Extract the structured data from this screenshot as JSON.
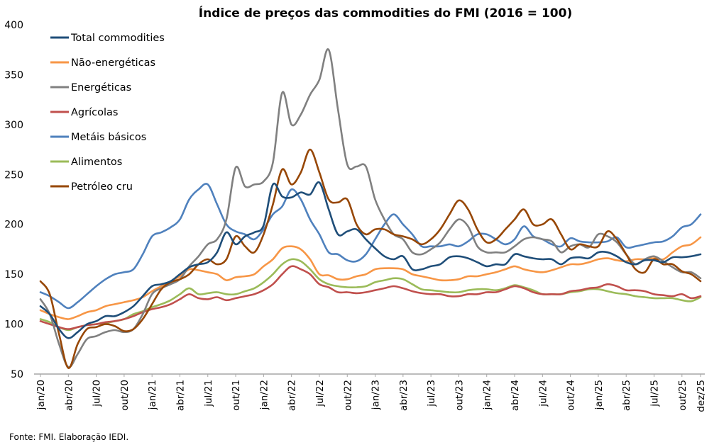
{
  "chart_data": {
    "type": "line",
    "title": "Índice de preços das commodities do FMI  (2016 = 100)",
    "xlabel": "",
    "ylabel": "",
    "ylim": [
      50,
      400
    ],
    "yticks": [
      50,
      100,
      150,
      200,
      250,
      300,
      350,
      400
    ],
    "grid": false,
    "legend_position": "top-left",
    "x_tick_labels": [
      "jan/20",
      "abr/20",
      "jul/20",
      "out/20",
      "jan/21",
      "abr/21",
      "jul/21",
      "out/21",
      "jan/22",
      "abr/22",
      "jul/22",
      "out/22",
      "jan/23",
      "abr/23",
      "jul/23",
      "out/23",
      "jan/24",
      "abr/24",
      "jul/24",
      "out/24",
      "jan/25",
      "abr/25",
      "jul/25",
      "out/25",
      "dez/25"
    ],
    "x": [
      "jan/20",
      "fev/20",
      "mar/20",
      "abr/20",
      "mai/20",
      "jun/20",
      "jul/20",
      "ago/20",
      "set/20",
      "out/20",
      "nov/20",
      "dez/20",
      "jan/21",
      "fev/21",
      "mar/21",
      "abr/21",
      "mai/21",
      "jun/21",
      "jul/21",
      "ago/21",
      "set/21",
      "out/21",
      "nov/21",
      "dez/21",
      "jan/22",
      "fev/22",
      "mar/22",
      "abr/22",
      "mai/22",
      "jun/22",
      "jul/22",
      "ago/22",
      "set/22",
      "out/22",
      "nov/22",
      "dez/22",
      "jan/23",
      "fev/23",
      "mar/23",
      "abr/23",
      "mai/23",
      "jun/23",
      "jul/23",
      "ago/23",
      "set/23",
      "out/23",
      "nov/23",
      "dez/23",
      "jan/24",
      "fev/24",
      "mar/24",
      "abr/24",
      "mai/24",
      "jun/24",
      "jul/24",
      "ago/24",
      "set/24",
      "out/24",
      "nov/24",
      "dez/24",
      "jan/25",
      "fev/25",
      "mar/25",
      "abr/25",
      "mai/25",
      "jun/25",
      "jul/25",
      "ago/25",
      "set/25",
      "out/25",
      "nov/25",
      "dez/25"
    ],
    "series": [
      {
        "name": "Total commodities",
        "color": "#1F4E79",
        "values": [
          118,
          110,
          95,
          86,
          92,
          100,
          103,
          108,
          108,
          112,
          118,
          128,
          138,
          140,
          143,
          150,
          157,
          160,
          162,
          172,
          192,
          180,
          188,
          192,
          199,
          240,
          228,
          227,
          232,
          230,
          242,
          215,
          190,
          193,
          195,
          185,
          176,
          168,
          165,
          168,
          155,
          155,
          158,
          160,
          167,
          168,
          166,
          162,
          158,
          160,
          160,
          170,
          168,
          166,
          165,
          165,
          160,
          166,
          167,
          166,
          172,
          172,
          168,
          162,
          160,
          164,
          164,
          162,
          167,
          167,
          168,
          170
        ]
      },
      {
        "name": "Não-energéticas",
        "color": "#F79646",
        "values": [
          114,
          110,
          107,
          105,
          108,
          112,
          114,
          118,
          120,
          122,
          124,
          127,
          133,
          138,
          143,
          148,
          155,
          154,
          152,
          150,
          144,
          147,
          148,
          150,
          158,
          165,
          176,
          178,
          175,
          165,
          150,
          149,
          145,
          145,
          148,
          150,
          155,
          156,
          156,
          155,
          150,
          148,
          146,
          144,
          144,
          145,
          148,
          148,
          150,
          152,
          155,
          158,
          155,
          153,
          152,
          154,
          157,
          160,
          160,
          162,
          165,
          166,
          164,
          163,
          165,
          165,
          166,
          165,
          172,
          178,
          180,
          187
        ]
      },
      {
        "name": "Energéticas",
        "color": "#808080",
        "values": [
          125,
          110,
          80,
          57,
          70,
          85,
          88,
          92,
          94,
          92,
          95,
          110,
          130,
          136,
          140,
          145,
          158,
          168,
          180,
          185,
          205,
          257,
          238,
          240,
          243,
          262,
          332,
          300,
          310,
          330,
          345,
          375,
          315,
          260,
          258,
          258,
          225,
          205,
          190,
          185,
          172,
          170,
          175,
          182,
          195,
          205,
          198,
          178,
          172,
          172,
          172,
          178,
          185,
          187,
          185,
          183,
          172,
          178,
          180,
          177,
          190,
          188,
          182,
          170,
          160,
          165,
          168,
          163,
          157,
          152,
          152,
          146
        ]
      },
      {
        "name": "Agrícolas",
        "color": "#C0504D",
        "values": [
          103,
          100,
          97,
          95,
          97,
          99,
          100,
          102,
          103,
          105,
          108,
          112,
          115,
          117,
          120,
          125,
          130,
          126,
          125,
          127,
          124,
          126,
          128,
          130,
          134,
          140,
          150,
          158,
          155,
          150,
          140,
          137,
          132,
          132,
          131,
          132,
          134,
          136,
          138,
          136,
          133,
          131,
          130,
          130,
          128,
          128,
          130,
          130,
          132,
          132,
          135,
          138,
          136,
          132,
          130,
          130,
          130,
          133,
          134,
          136,
          137,
          140,
          138,
          134,
          134,
          133,
          130,
          129,
          128,
          130,
          126,
          128
        ]
      },
      {
        "name": "Metáis básicos",
        "color": "#4F81BD",
        "values": [
          132,
          128,
          122,
          116,
          122,
          130,
          138,
          145,
          150,
          152,
          155,
          170,
          188,
          192,
          197,
          205,
          225,
          235,
          240,
          220,
          200,
          193,
          190,
          185,
          195,
          210,
          218,
          235,
          225,
          205,
          190,
          172,
          170,
          164,
          163,
          170,
          185,
          200,
          210,
          200,
          190,
          178,
          178,
          178,
          180,
          178,
          183,
          190,
          190,
          185,
          180,
          185,
          198,
          188,
          185,
          180,
          178,
          186,
          183,
          182,
          182,
          183,
          187,
          177,
          178,
          180,
          182,
          183,
          188,
          197,
          200,
          210
        ]
      },
      {
        "name": "Alimentos",
        "color": "#9BBB59",
        "values": [
          105,
          102,
          97,
          94,
          97,
          99,
          100,
          101,
          103,
          105,
          110,
          113,
          117,
          120,
          124,
          130,
          136,
          130,
          131,
          132,
          130,
          130,
          133,
          136,
          142,
          150,
          160,
          165,
          163,
          155,
          145,
          140,
          138,
          137,
          137,
          138,
          142,
          144,
          146,
          145,
          140,
          135,
          134,
          133,
          132,
          132,
          134,
          135,
          135,
          134,
          136,
          139,
          137,
          134,
          130,
          130,
          130,
          132,
          133,
          135,
          135,
          133,
          131,
          130,
          128,
          127,
          126,
          126,
          126,
          124,
          123,
          127
        ]
      },
      {
        "name": "Petróleo cru",
        "color": "#974706",
        "values": [
          143,
          130,
          90,
          56,
          80,
          95,
          97,
          100,
          98,
          93,
          95,
          105,
          120,
          135,
          142,
          145,
          150,
          160,
          165,
          160,
          165,
          188,
          178,
          172,
          190,
          220,
          255,
          240,
          252,
          275,
          252,
          225,
          222,
          225,
          200,
          190,
          195,
          195,
          190,
          188,
          185,
          180,
          185,
          195,
          210,
          224,
          215,
          195,
          182,
          185,
          195,
          205,
          215,
          200,
          200,
          205,
          190,
          175,
          180,
          178,
          178,
          193,
          185,
          170,
          155,
          152,
          165,
          160,
          160,
          153,
          150,
          143
        ]
      }
    ]
  },
  "source_text": "Fonte: FMI. Elaboração IEDI."
}
